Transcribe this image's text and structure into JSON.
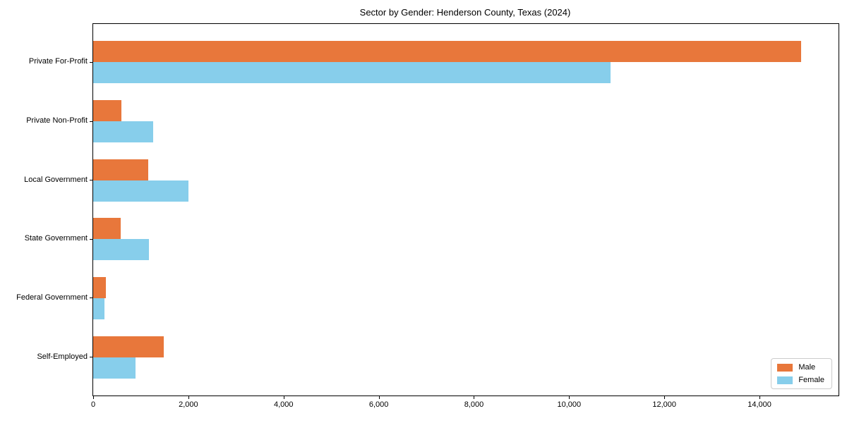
{
  "title": "Sector by Gender: Henderson County, Texas (2024)",
  "colors": {
    "male": "#E8773B",
    "female": "#87CEEB",
    "axis": "#000000",
    "legend_border": "#cccccc",
    "background": "#ffffff"
  },
  "chart_data": {
    "type": "bar",
    "orientation": "horizontal",
    "title": "Sector by Gender: Henderson County, Texas (2024)",
    "xlabel": "",
    "ylabel": "",
    "categories": [
      "Private For-Profit",
      "Private Non-Profit",
      "Local Government",
      "State Government",
      "Federal Government",
      "Self-Employed"
    ],
    "series": [
      {
        "name": "Male",
        "color": "#E8773B",
        "values": [
          14870,
          590,
          1155,
          580,
          265,
          1480
        ]
      },
      {
        "name": "Female",
        "color": "#87CEEB",
        "values": [
          10870,
          1260,
          2000,
          1165,
          235,
          890
        ]
      }
    ],
    "xlim": [
      0,
      15660
    ],
    "xticks": [
      0,
      2000,
      4000,
      6000,
      8000,
      10000,
      12000,
      14000
    ],
    "xtick_labels": [
      "0",
      "2,000",
      "4,000",
      "6,000",
      "8,000",
      "10,000",
      "12,000",
      "14,000"
    ],
    "grid": false,
    "legend": {
      "position": "lower right",
      "entries": [
        "Male",
        "Female"
      ]
    }
  }
}
